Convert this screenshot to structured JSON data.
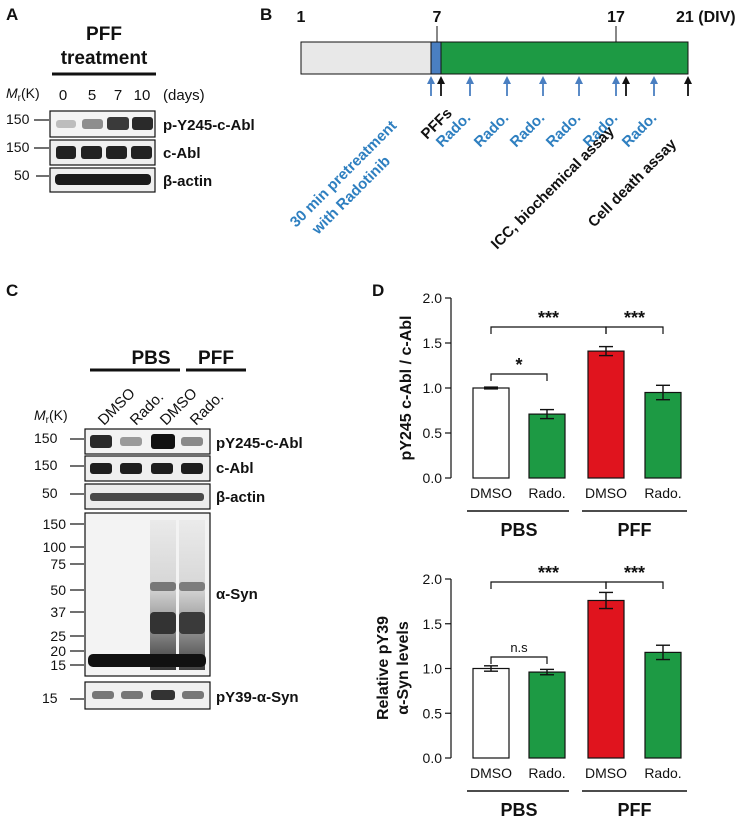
{
  "panel_a": {
    "letter": "A",
    "header_line1": "PFF",
    "header_line2": "treatment",
    "mr_label": "M",
    "mr_sub": "r",
    "mr_unit": "(K)",
    "timepoints": [
      "0",
      "5",
      "7",
      "10"
    ],
    "time_unit": "(days)",
    "blots": [
      {
        "marker": "150",
        "label": "p-Y245-c-Abl"
      },
      {
        "marker": "150",
        "label": "c-Abl"
      },
      {
        "marker": "50",
        "label": "β-actin"
      }
    ]
  },
  "panel_b": {
    "letter": "B",
    "days": [
      "1",
      "7",
      "17",
      "21 (DIV)"
    ],
    "pretreatment_line1": "30 min pretreatment",
    "pretreatment_line2": "with Radotinib",
    "pffs": "PFFs",
    "rado_labels": [
      "Rado.",
      "Rado.",
      "Rado.",
      "Rado.",
      "Rado.",
      "Rado."
    ],
    "icc_label": "ICC, biochemical assay",
    "death_label": "Cell death assay",
    "colors": {
      "pre": "#e8e8e8",
      "pretreat": "#4a7fc1",
      "treatment": "#1d9a44",
      "rado_text": "#2e7fc0"
    }
  },
  "panel_c": {
    "letter": "C",
    "groups": [
      "PBS",
      "PFF"
    ],
    "lanes": [
      "DMSO",
      "Rado.",
      "DMSO",
      "Rado."
    ],
    "mr_label": "M",
    "mr_sub": "r",
    "mr_unit": "(K)",
    "blots": [
      {
        "markers": [
          "150"
        ],
        "label": "pY245-c-Abl"
      },
      {
        "markers": [
          "150"
        ],
        "label": "c-Abl"
      },
      {
        "markers": [
          "50"
        ],
        "label": "β-actin"
      },
      {
        "markers": [
          "150",
          "100",
          "75",
          "50",
          "37",
          "25",
          "20",
          "15"
        ],
        "label": "α-Syn"
      },
      {
        "markers": [
          "15"
        ],
        "label": "pY39-α-Syn"
      }
    ]
  },
  "panel_d": {
    "letter": "D",
    "colors": {
      "dmso_pbs": "#ffffff",
      "rado": "#1d9a44",
      "dmso_pff": "#e0141e"
    }
  },
  "chart_data": [
    {
      "type": "bar",
      "categories": [
        "DMSO",
        "Rado.",
        "DMSO",
        "Rado."
      ],
      "groups": [
        "PBS",
        "PFF"
      ],
      "values": [
        1.0,
        0.71,
        1.41,
        0.95
      ],
      "errors": [
        0.01,
        0.05,
        0.05,
        0.08
      ],
      "ylabel": "pY245 c-Abl / c-Abl",
      "ylim": [
        0,
        2.0
      ],
      "yticks": [
        "0.0",
        "0.5",
        "1.0",
        "1.5",
        "2.0"
      ],
      "significance": [
        {
          "bars": [
            0,
            1
          ],
          "label": "*"
        },
        {
          "bars": [
            0,
            2
          ],
          "label": "***"
        },
        {
          "bars": [
            2,
            3
          ],
          "label": "***"
        }
      ]
    },
    {
      "type": "bar",
      "categories": [
        "DMSO",
        "Rado.",
        "DMSO",
        "Rado."
      ],
      "groups": [
        "PBS",
        "PFF"
      ],
      "values": [
        1.0,
        0.96,
        1.76,
        1.18
      ],
      "errors": [
        0.03,
        0.03,
        0.09,
        0.08
      ],
      "ylabel_line1": "Relative pY39",
      "ylabel_line2": "α-Syn levels",
      "ylim": [
        0,
        2.0
      ],
      "yticks": [
        "0.0",
        "0.5",
        "1.0",
        "1.5",
        "2.0"
      ],
      "significance": [
        {
          "bars": [
            0,
            1
          ],
          "label": "n.s"
        },
        {
          "bars": [
            0,
            2
          ],
          "label": "***"
        },
        {
          "bars": [
            2,
            3
          ],
          "label": "***"
        }
      ]
    }
  ]
}
